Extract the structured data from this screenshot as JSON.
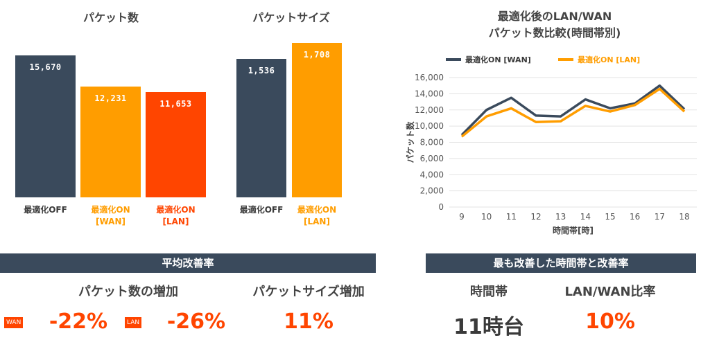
{
  "colors": {
    "navy": "#3a4a5c",
    "orange": "#ff9d00",
    "red": "#ff4500",
    "header_bg": "#3a4a5c"
  },
  "chart_data": [
    {
      "type": "bar",
      "title": "パケット数",
      "categories": [
        {
          "line1": "最適化OFF",
          "line2": "",
          "color_key": "navy"
        },
        {
          "line1": "最適化ON",
          "line2": "[WAN]",
          "color_key": "orange"
        },
        {
          "line1": "最適化ON",
          "line2": "[LAN]",
          "color_key": "red"
        }
      ],
      "values": [
        15670,
        12231,
        11653
      ],
      "value_labels": [
        "15,670",
        "12,231",
        "11,653"
      ],
      "ylim": [
        0,
        16000
      ],
      "grid": false
    },
    {
      "type": "bar",
      "title": "パケットサイズ",
      "categories": [
        {
          "line1": "最適化OFF",
          "line2": "",
          "color_key": "navy"
        },
        {
          "line1": "最適化ON",
          "line2": "[LAN]",
          "color_key": "orange"
        }
      ],
      "values": [
        1536,
        1708
      ],
      "value_labels": [
        "1,536",
        "1,708"
      ],
      "ylim": [
        0,
        1750
      ],
      "grid": false
    },
    {
      "type": "line",
      "title_line1": "最適化後のLAN/WAN",
      "title_line2": "パケット数比較(時間帯別)",
      "xlabel": "時間帯[時]",
      "ylabel": "パケット数",
      "x": [
        9,
        10,
        11,
        12,
        13,
        14,
        15,
        16,
        17,
        18
      ],
      "ylim": [
        0,
        16000
      ],
      "yticks": [
        0,
        2000,
        4000,
        6000,
        8000,
        10000,
        12000,
        14000,
        16000
      ],
      "ytick_labels": [
        "0",
        "2,000",
        "4,000",
        "6,000",
        "8,000",
        "10,000",
        "12,000",
        "14,000",
        "16,000"
      ],
      "legend_placement": "top-left",
      "grid": "horizontal",
      "series": [
        {
          "name": "最適化ON [WAN]",
          "color_key": "navy",
          "values": [
            8900,
            12000,
            13500,
            11300,
            11200,
            13300,
            12200,
            12800,
            15000,
            12100
          ]
        },
        {
          "name": "最適化ON [LAN]",
          "color_key": "orange",
          "values": [
            8700,
            11200,
            12200,
            10500,
            10600,
            12500,
            11800,
            12600,
            14600,
            11800
          ]
        }
      ]
    }
  ],
  "summary_left": {
    "header": "平均改善率",
    "packet_count_label": "パケット数の増加",
    "packet_size_label": "パケットサイズ増加",
    "wan_tag": "WAN",
    "wan_value": "-22%",
    "lan_tag": "LAN",
    "lan_value": "-26%",
    "size_value": "11%"
  },
  "summary_right": {
    "header": "最も改善した時間帯と改善率",
    "time_label": "時間帯",
    "ratio_label": "LAN/WAN比率",
    "time_value": "11時台",
    "ratio_value": "10%"
  }
}
